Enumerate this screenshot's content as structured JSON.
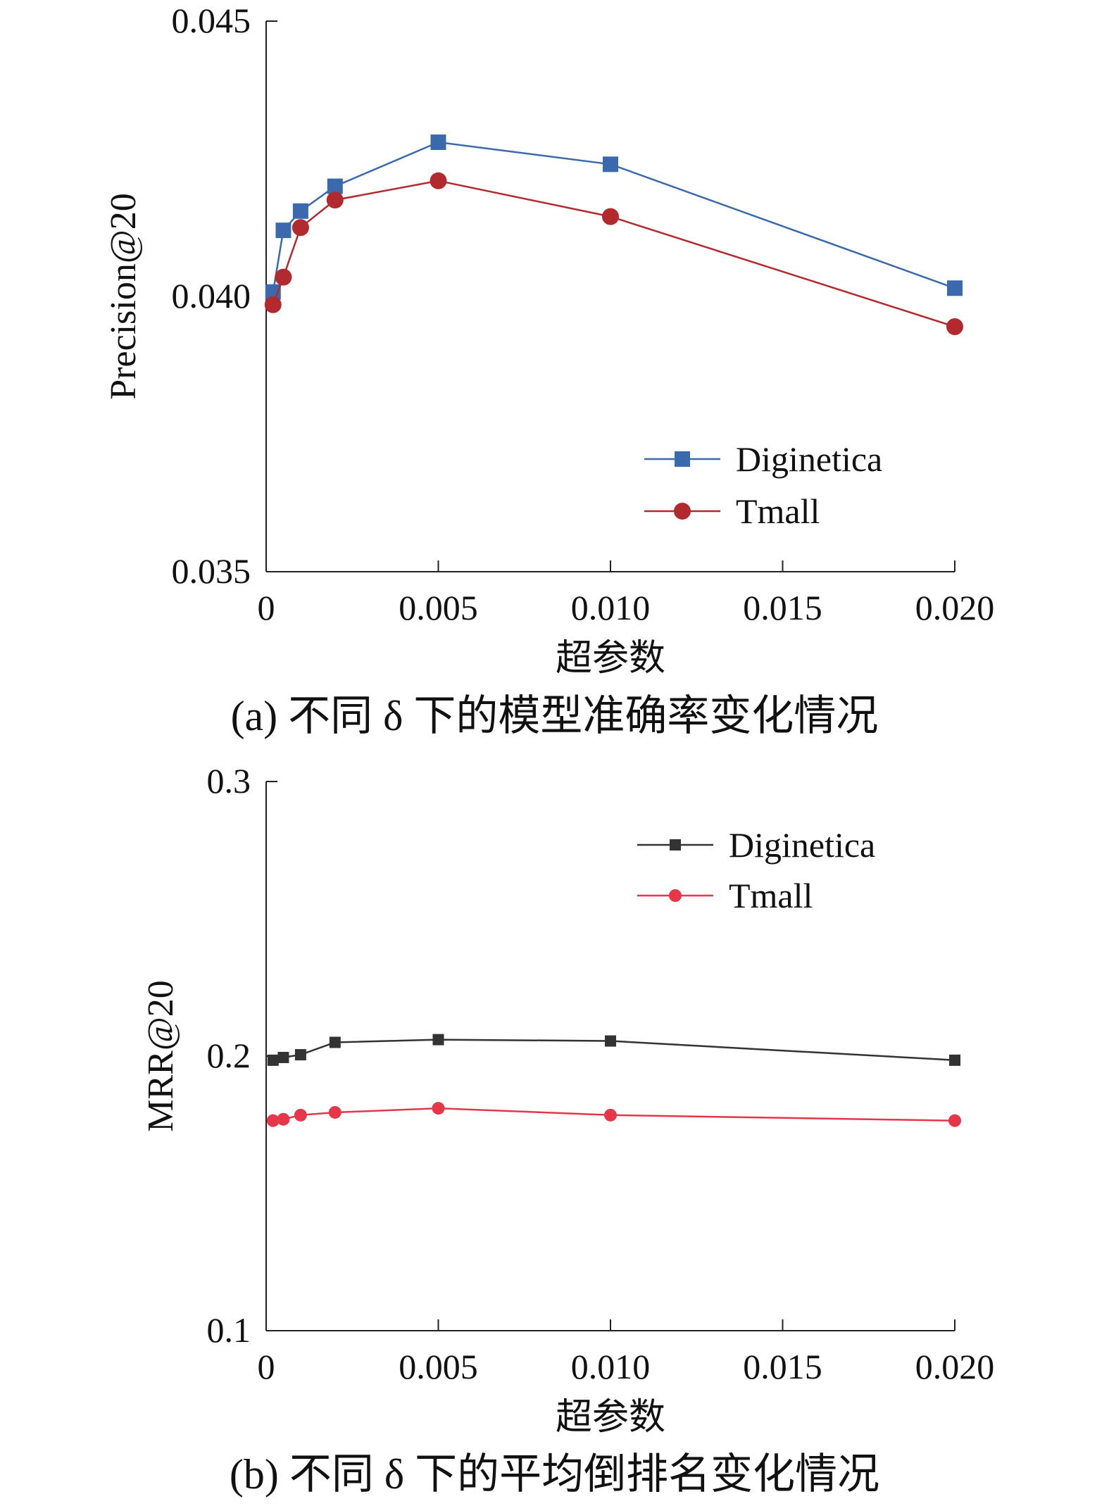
{
  "chart_data": [
    {
      "type": "line",
      "caption": "(a) 不同 δ 下的模型准确率变化情况",
      "xlabel": "超参数",
      "ylabel": "Precision@20",
      "x_ticks": [
        "0",
        "0.005",
        "0.010",
        "0.015",
        "0.020"
      ],
      "y_ticks": [
        "0.035",
        "0.040",
        "0.045"
      ],
      "xlim": [
        0,
        0.02
      ],
      "ylim": [
        0.035,
        0.045
      ],
      "grid": false,
      "legend_position": "lower-right",
      "x": [
        0.0002,
        0.0005,
        0.001,
        0.002,
        0.005,
        0.01,
        0.02
      ],
      "series": [
        {
          "name": "Diginetica",
          "marker": "square",
          "color": "#3a6aad",
          "values": [
            0.04008,
            0.0412,
            0.04155,
            0.042,
            0.0428,
            0.0424,
            0.04015
          ]
        },
        {
          "name": "Tmall",
          "marker": "circle",
          "color": "#b22a2e",
          "values": [
            0.03985,
            0.04035,
            0.04125,
            0.04175,
            0.0421,
            0.04145,
            0.03945
          ]
        }
      ]
    },
    {
      "type": "line",
      "caption": "(b) 不同 δ 下的平均倒排名变化情况",
      "xlabel": "超参数",
      "ylabel": "MRR@20",
      "x_ticks": [
        "0",
        "0.005",
        "0.010",
        "0.015",
        "0.020"
      ],
      "y_ticks": [
        "0.1",
        "0.2",
        "0.3"
      ],
      "xlim": [
        0,
        0.02
      ],
      "ylim": [
        0.1,
        0.3
      ],
      "grid": false,
      "legend_position": "upper-right",
      "x": [
        0.0002,
        0.0005,
        0.001,
        0.002,
        0.005,
        0.01,
        0.02
      ],
      "series": [
        {
          "name": "Diginetica",
          "marker": "square",
          "color": "#333333",
          "values": [
            0.1985,
            0.1995,
            0.2005,
            0.205,
            0.206,
            0.2055,
            0.1985
          ]
        },
        {
          "name": "Tmall",
          "marker": "circle",
          "color": "#e5364a",
          "values": [
            0.1765,
            0.177,
            0.1785,
            0.1795,
            0.181,
            0.1785,
            0.1765
          ]
        }
      ]
    }
  ]
}
